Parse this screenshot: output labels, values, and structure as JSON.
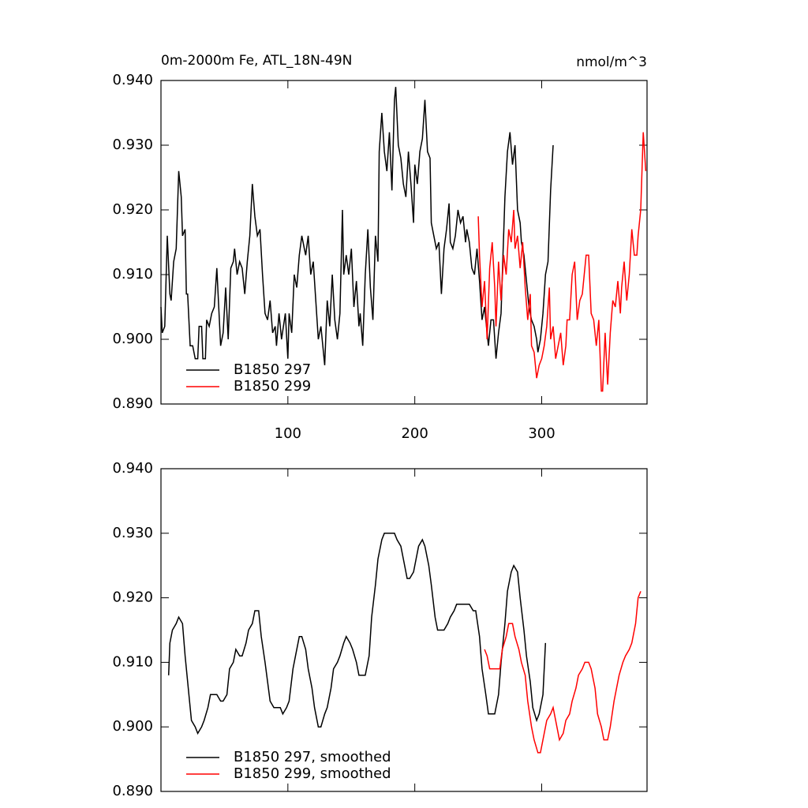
{
  "chart_data": [
    {
      "type": "line",
      "title": "0m-2000m Fe, ATL_18N-49N",
      "units": "nmol/m^3",
      "xlim": [
        0,
        383
      ],
      "ylim": [
        0.89,
        0.94
      ],
      "xticks": [
        100,
        200,
        300
      ],
      "yticks": [
        {
          "value": 0.89,
          "label": "0.890"
        },
        {
          "value": 0.9,
          "label": "0.900"
        },
        {
          "value": 0.91,
          "label": "0.910"
        },
        {
          "value": 0.92,
          "label": "0.920"
        },
        {
          "value": 0.93,
          "label": "0.930"
        },
        {
          "value": 0.94,
          "label": "0.940"
        }
      ],
      "legend": "lower left",
      "series": [
        {
          "name": "B1850 297",
          "color": "#000000",
          "x": [
            0,
            1,
            3,
            5,
            7,
            8,
            10,
            12,
            14,
            16,
            17,
            19,
            20,
            21,
            23,
            25,
            27,
            29,
            30,
            32,
            33,
            35,
            36,
            38,
            40,
            42,
            44,
            45,
            47,
            49,
            51,
            53,
            55,
            57,
            58,
            60,
            62,
            64,
            66,
            68,
            70,
            72,
            74,
            76,
            78,
            80,
            82,
            84,
            86,
            88,
            90,
            91,
            93,
            95,
            98,
            100,
            101,
            103,
            105,
            107,
            109,
            111,
            113,
            114,
            116,
            118,
            120,
            122,
            124,
            126,
            128,
            129,
            131,
            133,
            135,
            137,
            139,
            141,
            143,
            144,
            146,
            148,
            150,
            152,
            154,
            156,
            157,
            159,
            161,
            163,
            165,
            167,
            169,
            171,
            172,
            174,
            176,
            178,
            180,
            182,
            184,
            185,
            187,
            189,
            191,
            193,
            195,
            197,
            199,
            200,
            202,
            204,
            206,
            208,
            210,
            212,
            213,
            215,
            217,
            219,
            221,
            223,
            225,
            227,
            228,
            230,
            232,
            234,
            236,
            238,
            240,
            241,
            243,
            245,
            247,
            249,
            251,
            253,
            255,
            256,
            258,
            260,
            262,
            264,
            266,
            268,
            269,
            271,
            273,
            275,
            277,
            279,
            281,
            283,
            284,
            286,
            288,
            290,
            292,
            294,
            296,
            297,
            299,
            301,
            303,
            305,
            307,
            309
          ],
          "values": [
            0.905,
            0.901,
            0.902,
            0.916,
            0.907,
            0.906,
            0.912,
            0.914,
            0.926,
            0.922,
            0.916,
            0.917,
            0.907,
            0.907,
            0.899,
            0.899,
            0.897,
            0.897,
            0.902,
            0.902,
            0.897,
            0.897,
            0.903,
            0.902,
            0.904,
            0.905,
            0.911,
            0.907,
            0.899,
            0.901,
            0.908,
            0.9,
            0.911,
            0.912,
            0.914,
            0.91,
            0.912,
            0.911,
            0.907,
            0.912,
            0.916,
            0.924,
            0.919,
            0.916,
            0.917,
            0.91,
            0.904,
            0.903,
            0.906,
            0.901,
            0.902,
            0.899,
            0.904,
            0.9,
            0.904,
            0.897,
            0.904,
            0.901,
            0.91,
            0.908,
            0.913,
            0.916,
            0.914,
            0.913,
            0.916,
            0.91,
            0.912,
            0.906,
            0.9,
            0.902,
            0.898,
            0.896,
            0.906,
            0.902,
            0.91,
            0.903,
            0.9,
            0.904,
            0.92,
            0.91,
            0.913,
            0.91,
            0.914,
            0.905,
            0.909,
            0.902,
            0.904,
            0.899,
            0.91,
            0.917,
            0.908,
            0.903,
            0.916,
            0.912,
            0.929,
            0.935,
            0.929,
            0.926,
            0.932,
            0.923,
            0.937,
            0.939,
            0.93,
            0.928,
            0.924,
            0.922,
            0.929,
            0.924,
            0.918,
            0.927,
            0.924,
            0.929,
            0.931,
            0.937,
            0.929,
            0.928,
            0.918,
            0.916,
            0.914,
            0.915,
            0.907,
            0.914,
            0.917,
            0.921,
            0.915,
            0.914,
            0.916,
            0.92,
            0.918,
            0.919,
            0.915,
            0.917,
            0.915,
            0.911,
            0.91,
            0.914,
            0.909,
            0.903,
            0.905,
            0.903,
            0.899,
            0.903,
            0.903,
            0.897,
            0.901,
            0.904,
            0.91,
            0.922,
            0.929,
            0.932,
            0.927,
            0.93,
            0.92,
            0.918,
            0.915,
            0.913,
            0.909,
            0.905,
            0.903,
            0.902,
            0.9,
            0.898,
            0.9,
            0.904,
            0.91,
            0.912,
            0.923,
            0.93
          ]
        },
        {
          "name": "B1850 299",
          "color": "#ff0000",
          "x": [
            250,
            251,
            253,
            255,
            257,
            259,
            261,
            263,
            264,
            266,
            268,
            270,
            272,
            274,
            276,
            278,
            279,
            281,
            283,
            285,
            287,
            289,
            291,
            292,
            294,
            296,
            298,
            300,
            302,
            304,
            306,
            307,
            309,
            311,
            313,
            315,
            317,
            319,
            320,
            322,
            324,
            326,
            328,
            330,
            332,
            334,
            335,
            337,
            339,
            341,
            343,
            345,
            347,
            348,
            350,
            352,
            354,
            356,
            358,
            360,
            362,
            363,
            365,
            367,
            369,
            371,
            373,
            375,
            376,
            378,
            380,
            382
          ],
          "values": [
            0.919,
            0.913,
            0.905,
            0.909,
            0.9,
            0.911,
            0.915,
            0.908,
            0.902,
            0.912,
            0.906,
            0.913,
            0.91,
            0.917,
            0.915,
            0.92,
            0.914,
            0.916,
            0.911,
            0.915,
            0.908,
            0.903,
            0.907,
            0.899,
            0.898,
            0.894,
            0.896,
            0.897,
            0.899,
            0.902,
            0.908,
            0.9,
            0.902,
            0.897,
            0.899,
            0.901,
            0.896,
            0.899,
            0.903,
            0.903,
            0.91,
            0.912,
            0.903,
            0.906,
            0.907,
            0.911,
            0.913,
            0.913,
            0.904,
            0.903,
            0.899,
            0.903,
            0.892,
            0.892,
            0.901,
            0.893,
            0.901,
            0.906,
            0.905,
            0.909,
            0.904,
            0.908,
            0.912,
            0.906,
            0.91,
            0.917,
            0.913,
            0.913,
            0.916,
            0.92,
            0.932,
            0.926
          ]
        }
      ]
    },
    {
      "type": "line",
      "xlim": [
        0,
        383
      ],
      "ylim": [
        0.89,
        0.94
      ],
      "yticks": [
        {
          "value": 0.89,
          "label": "0.890"
        },
        {
          "value": 0.9,
          "label": "0.900"
        },
        {
          "value": 0.91,
          "label": "0.910"
        },
        {
          "value": 0.92,
          "label": "0.920"
        },
        {
          "value": 0.93,
          "label": "0.930"
        },
        {
          "value": 0.94,
          "label": "0.940"
        }
      ],
      "legend": "lower left",
      "series": [
        {
          "name": "B1850 297, smoothed",
          "color": "#000000",
          "x": [
            6,
            7,
            9,
            12,
            14,
            17,
            19,
            22,
            24,
            27,
            29,
            32,
            34,
            37,
            39,
            42,
            44,
            47,
            49,
            52,
            54,
            57,
            59,
            62,
            64,
            67,
            69,
            72,
            74,
            77,
            79,
            82,
            84,
            86,
            89,
            91,
            94,
            96,
            99,
            101,
            104,
            106,
            109,
            111,
            114,
            116,
            119,
            121,
            124,
            126,
            129,
            131,
            134,
            136,
            139,
            141,
            144,
            146,
            149,
            151,
            154,
            156,
            159,
            161,
            164,
            166,
            169,
            171,
            174,
            176,
            179,
            181,
            184,
            186,
            189,
            191,
            194,
            196,
            199,
            201,
            203,
            206,
            208,
            211,
            213,
            216,
            218,
            221,
            223,
            226,
            228,
            231,
            233,
            236,
            238,
            241,
            243,
            246,
            248,
            251,
            253,
            256,
            258,
            261,
            263,
            266,
            268,
            271,
            273,
            276,
            278,
            281,
            283,
            286,
            288,
            291,
            293,
            296,
            298,
            301,
            303
          ],
          "values": [
            0.908,
            0.913,
            0.915,
            0.916,
            0.917,
            0.916,
            0.911,
            0.905,
            0.901,
            0.9,
            0.899,
            0.9,
            0.901,
            0.903,
            0.905,
            0.905,
            0.905,
            0.904,
            0.904,
            0.905,
            0.909,
            0.91,
            0.912,
            0.911,
            0.911,
            0.913,
            0.915,
            0.916,
            0.918,
            0.918,
            0.914,
            0.91,
            0.907,
            0.904,
            0.903,
            0.903,
            0.903,
            0.902,
            0.903,
            0.904,
            0.909,
            0.911,
            0.914,
            0.914,
            0.912,
            0.909,
            0.906,
            0.903,
            0.9,
            0.9,
            0.902,
            0.903,
            0.906,
            0.909,
            0.91,
            0.911,
            0.913,
            0.914,
            0.913,
            0.912,
            0.91,
            0.908,
            0.908,
            0.908,
            0.911,
            0.917,
            0.922,
            0.926,
            0.929,
            0.93,
            0.93,
            0.93,
            0.93,
            0.929,
            0.928,
            0.926,
            0.923,
            0.923,
            0.924,
            0.926,
            0.928,
            0.929,
            0.928,
            0.925,
            0.922,
            0.917,
            0.915,
            0.915,
            0.915,
            0.916,
            0.917,
            0.918,
            0.919,
            0.919,
            0.919,
            0.919,
            0.919,
            0.918,
            0.918,
            0.914,
            0.909,
            0.905,
            0.902,
            0.902,
            0.902,
            0.905,
            0.91,
            0.916,
            0.921,
            0.924,
            0.925,
            0.924,
            0.92,
            0.915,
            0.911,
            0.907,
            0.903,
            0.901,
            0.902,
            0.905,
            0.913
          ]
        },
        {
          "name": "B1850 299, smoothed",
          "color": "#ff0000",
          "x": [
            255,
            257,
            259,
            262,
            264,
            267,
            269,
            272,
            274,
            277,
            279,
            282,
            284,
            287,
            289,
            292,
            294,
            297,
            299,
            302,
            304,
            307,
            309,
            311,
            314,
            317,
            319,
            322,
            324,
            327,
            329,
            332,
            334,
            337,
            339,
            342,
            344,
            347,
            349,
            352,
            354,
            357,
            359,
            361,
            364,
            366,
            369,
            371,
            374,
            376,
            378
          ],
          "values": [
            0.912,
            0.911,
            0.909,
            0.909,
            0.909,
            0.909,
            0.912,
            0.914,
            0.916,
            0.916,
            0.914,
            0.912,
            0.91,
            0.908,
            0.904,
            0.9,
            0.898,
            0.896,
            0.896,
            0.899,
            0.901,
            0.902,
            0.903,
            0.901,
            0.898,
            0.899,
            0.901,
            0.902,
            0.904,
            0.906,
            0.908,
            0.909,
            0.91,
            0.91,
            0.909,
            0.906,
            0.902,
            0.9,
            0.898,
            0.898,
            0.9,
            0.904,
            0.906,
            0.908,
            0.91,
            0.911,
            0.912,
            0.913,
            0.916,
            0.92,
            0.921
          ]
        }
      ]
    }
  ]
}
